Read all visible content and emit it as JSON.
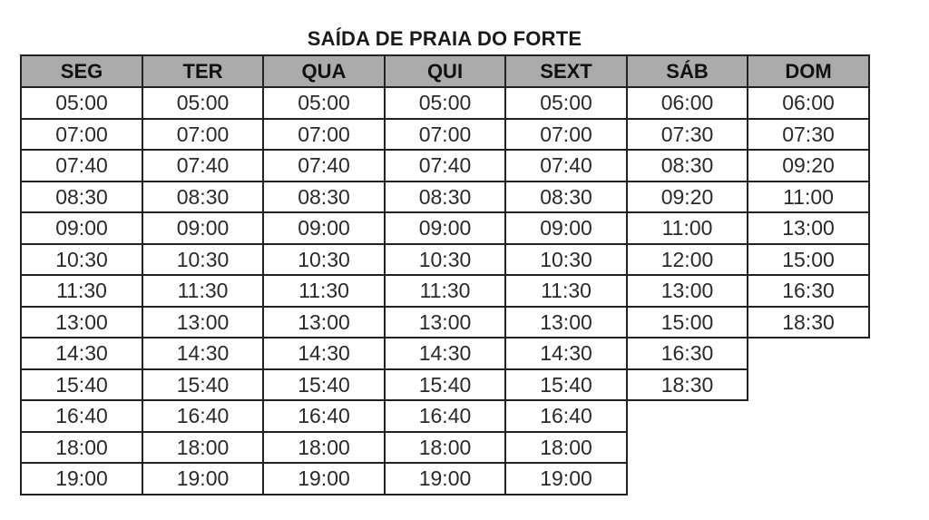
{
  "title": "SAÍDA DE PRAIA DO FORTE",
  "header_color": "#ababab",
  "columns": [
    {
      "day": "SEG",
      "times": [
        "05:00",
        "07:00",
        "07:40",
        "08:30",
        "09:00",
        "10:30",
        "11:30",
        "13:00",
        "14:30",
        "15:40",
        "16:40",
        "18:00",
        "19:00"
      ]
    },
    {
      "day": "TER",
      "times": [
        "05:00",
        "07:00",
        "07:40",
        "08:30",
        "09:00",
        "10:30",
        "11:30",
        "13:00",
        "14:30",
        "15:40",
        "16:40",
        "18:00",
        "19:00"
      ]
    },
    {
      "day": "QUA",
      "times": [
        "05:00",
        "07:00",
        "07:40",
        "08:30",
        "09:00",
        "10:30",
        "11:30",
        "13:00",
        "14:30",
        "15:40",
        "16:40",
        "18:00",
        "19:00"
      ]
    },
    {
      "day": "QUI",
      "times": [
        "05:00",
        "07:00",
        "07:40",
        "08:30",
        "09:00",
        "10:30",
        "11:30",
        "13:00",
        "14:30",
        "15:40",
        "16:40",
        "18:00",
        "19:00"
      ]
    },
    {
      "day": "SEXT",
      "times": [
        "05:00",
        "07:00",
        "07:40",
        "08:30",
        "09:00",
        "10:30",
        "11:30",
        "13:00",
        "14:30",
        "15:40",
        "16:40",
        "18:00",
        "19:00"
      ]
    },
    {
      "day": "SÁB",
      "times": [
        "06:00",
        "07:30",
        "08:30",
        "09:20",
        "11:00",
        "12:00",
        "13:00",
        "15:00",
        "16:30",
        "18:30"
      ]
    },
    {
      "day": "DOM",
      "times": [
        "06:00",
        "07:30",
        "09:20",
        "11:00",
        "13:00",
        "15:00",
        "16:30",
        "18:30"
      ]
    }
  ]
}
